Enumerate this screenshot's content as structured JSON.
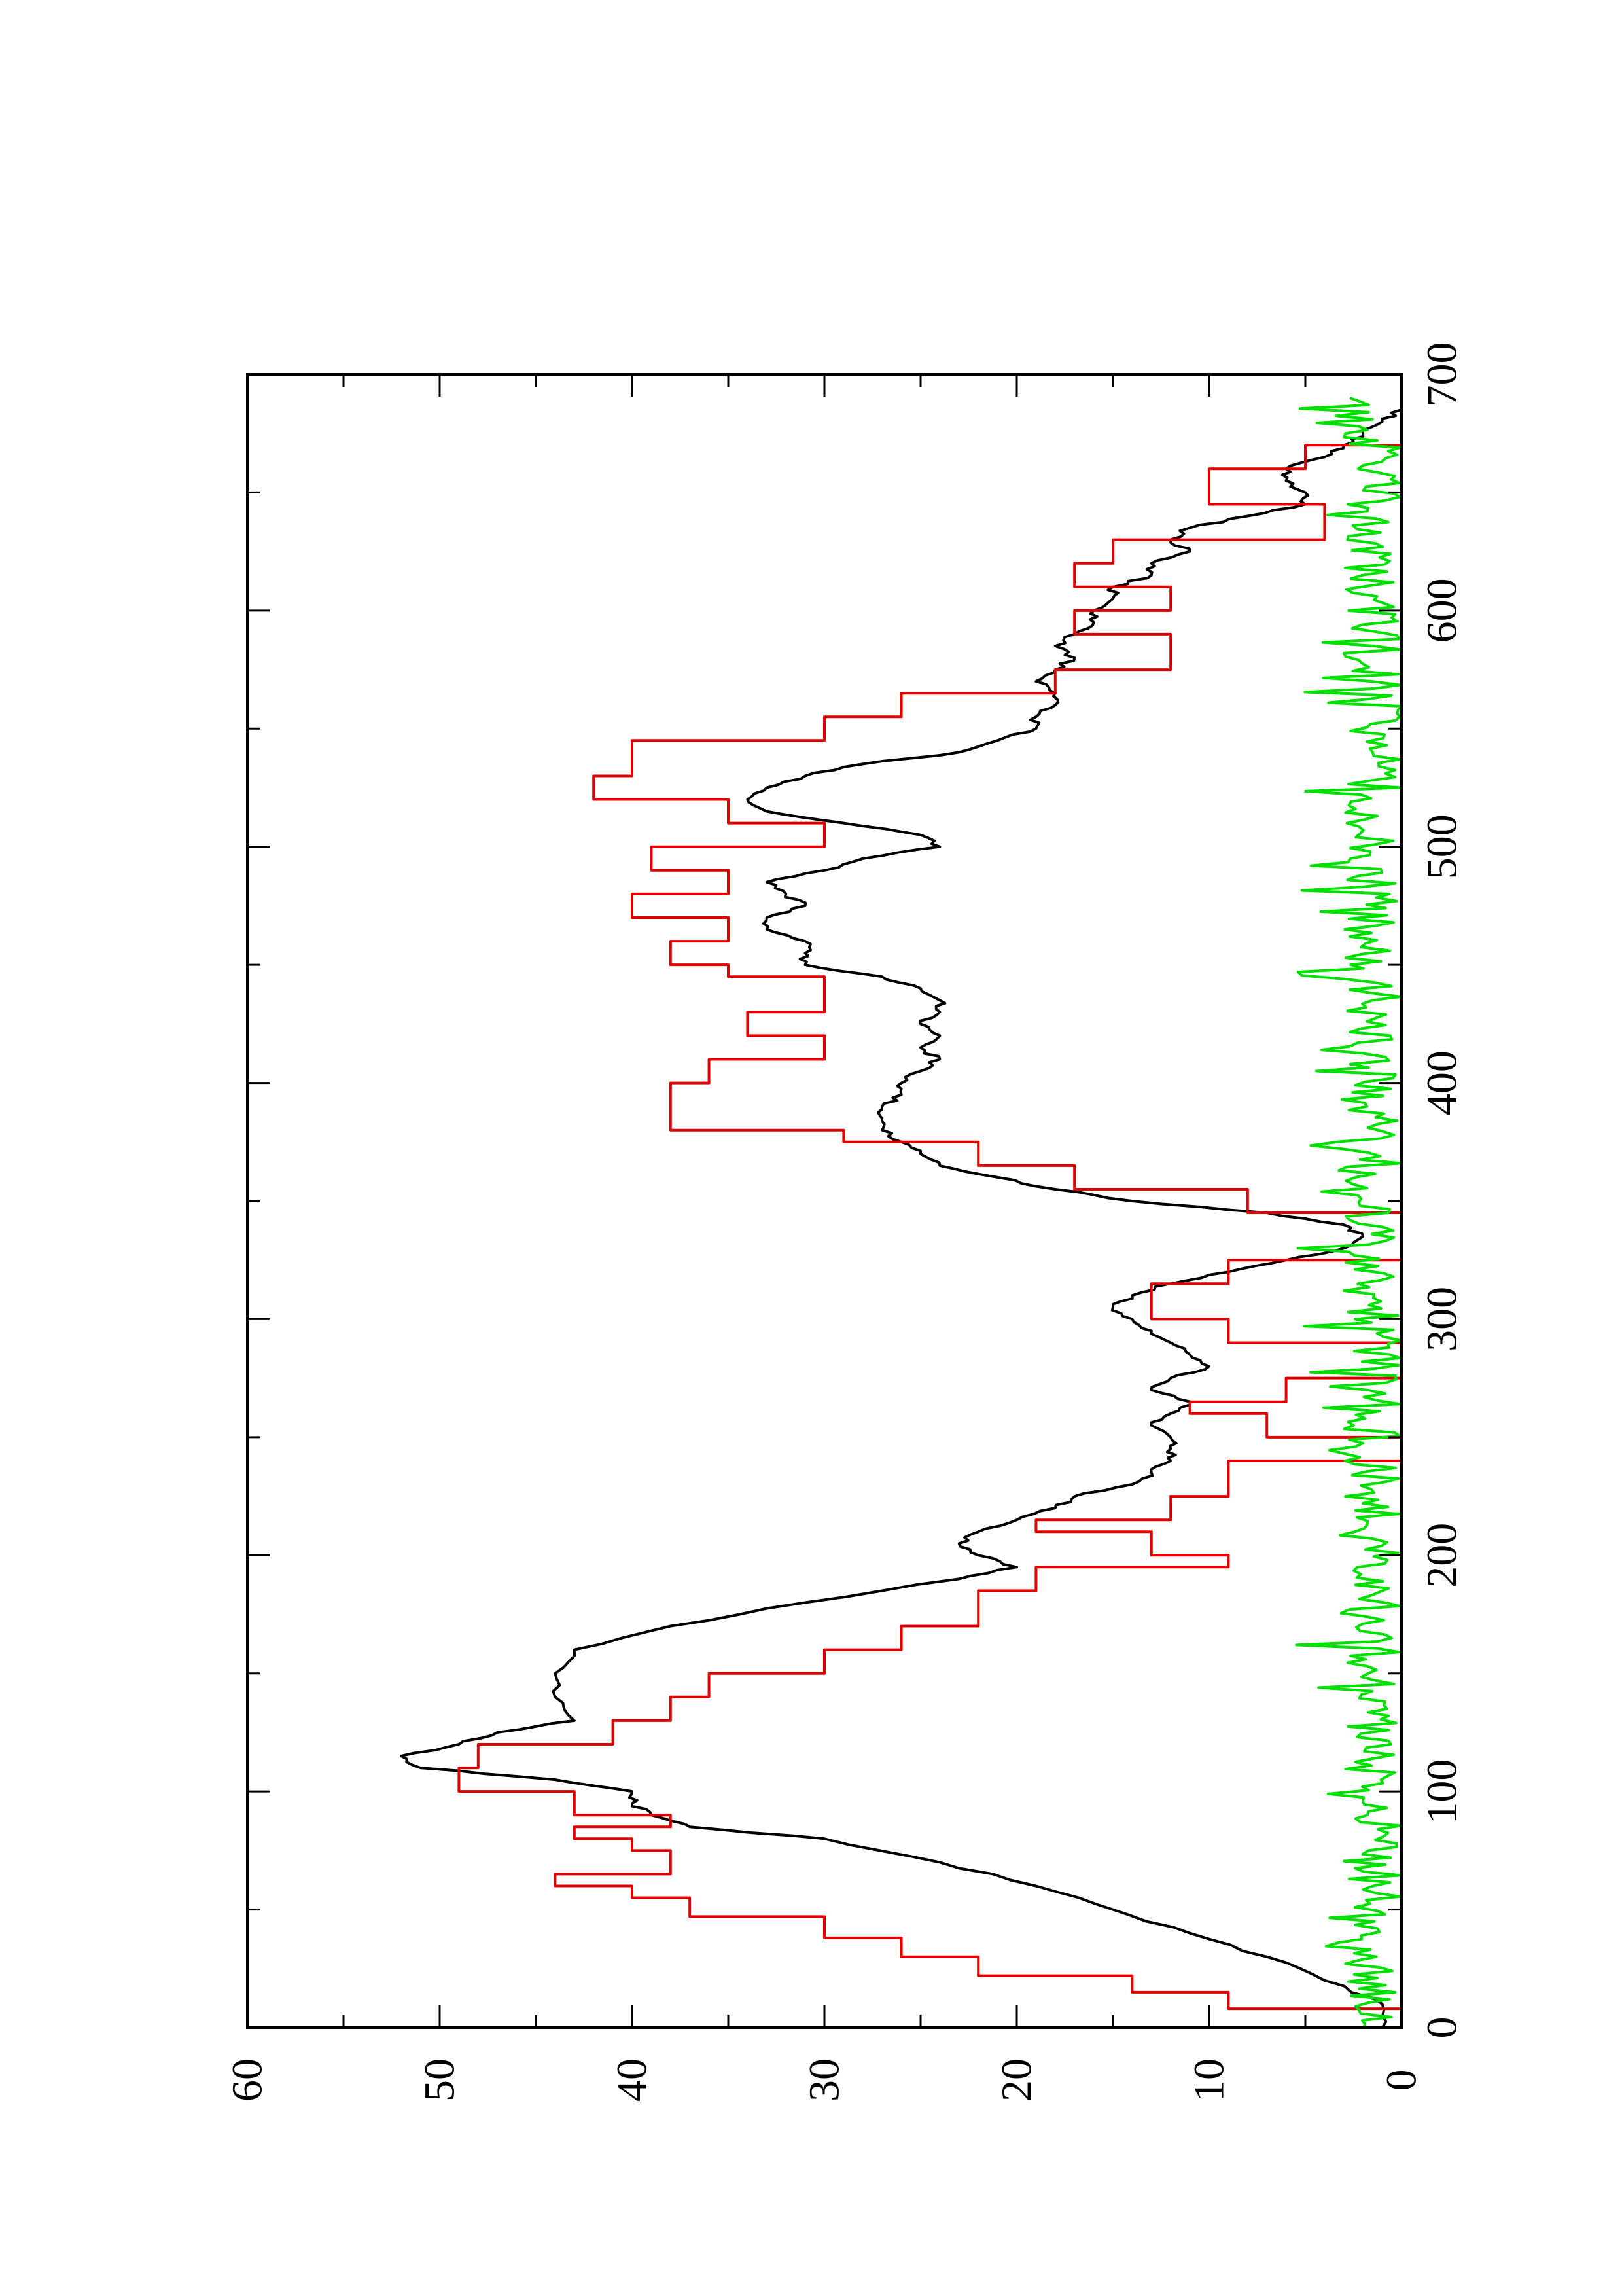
{
  "chart_data": {
    "type": "line",
    "orientation": "rotated-90-ccw",
    "title": "",
    "xlabel": "",
    "ylabel": "",
    "xlim": [
      0,
      700
    ],
    "ylim": [
      0,
      60
    ],
    "x_ticks": [
      0,
      100,
      200,
      300,
      400,
      500,
      600,
      700
    ],
    "x_tick_labels": [
      "0",
      "100",
      "200",
      "300",
      "400",
      "500",
      "600",
      "700"
    ],
    "y_ticks": [
      0,
      10,
      20,
      30,
      40,
      50,
      60
    ],
    "y_tick_labels": [
      "0",
      "10",
      "20",
      "30",
      "40",
      "50",
      "60"
    ],
    "grid": false,
    "series": [
      {
        "color": "#000000",
        "style": "smooth",
        "x": [
          0,
          10,
          20,
          30,
          40,
          50,
          60,
          70,
          80,
          85,
          90,
          95,
          100,
          105,
          110,
          115,
          120,
          125,
          130,
          140,
          150,
          160,
          170,
          180,
          190,
          195,
          200,
          205,
          210,
          215,
          220,
          225,
          230,
          235,
          240,
          245,
          250,
          255,
          260,
          265,
          270,
          275,
          280,
          285,
          290,
          295,
          300,
          305,
          310,
          315,
          320,
          325,
          330,
          335,
          340,
          345,
          350,
          355,
          360,
          365,
          370,
          375,
          380,
          385,
          390,
          395,
          400,
          405,
          410,
          415,
          420,
          425,
          430,
          435,
          440,
          445,
          450,
          455,
          460,
          465,
          470,
          475,
          480,
          485,
          490,
          495,
          500,
          505,
          510,
          515,
          520,
          525,
          530,
          535,
          540,
          545,
          550,
          555,
          560,
          565,
          570,
          575,
          580,
          585,
          590,
          595,
          600,
          605,
          610,
          615,
          620,
          625,
          630,
          635,
          640,
          645,
          650,
          655,
          660,
          665,
          670,
          675,
          680,
          685
        ],
        "values": [
          1,
          1,
          4,
          7,
          11,
          15,
          19,
          24,
          30,
          37,
          39,
          40,
          40,
          44,
          51,
          52,
          49,
          47,
          43,
          44,
          44,
          43,
          38,
          31,
          23,
          20,
          22,
          23,
          22,
          20,
          18,
          17,
          14,
          13,
          12,
          12,
          12,
          13,
          12,
          11,
          13,
          12,
          10,
          11,
          12,
          13,
          14,
          15,
          14,
          12,
          9,
          6,
          3,
          2,
          3,
          7,
          14,
          18,
          21,
          24,
          25,
          26,
          27,
          27,
          27,
          26,
          26,
          25,
          24,
          25,
          24,
          25,
          24,
          24,
          25,
          27,
          31,
          31,
          31,
          33,
          33,
          31,
          32,
          33,
          30,
          28,
          24,
          25,
          29,
          33,
          34,
          33,
          31,
          28,
          23,
          21,
          19,
          19,
          18,
          18,
          19,
          18,
          17,
          18,
          17,
          16,
          16,
          15,
          15,
          13,
          13,
          11,
          12,
          11,
          8,
          5,
          5,
          6,
          6,
          4,
          3,
          2,
          1,
          0
        ]
      },
      {
        "color": "#e00000",
        "style": "step",
        "x": [
          0,
          8,
          15,
          22,
          30,
          38,
          47,
          55,
          60,
          65,
          75,
          80,
          85,
          90,
          100,
          110,
          120,
          130,
          140,
          150,
          160,
          170,
          185,
          195,
          200,
          210,
          215,
          225,
          240,
          250,
          260,
          265,
          275,
          285,
          290,
          300,
          315,
          325,
          335,
          345,
          355,
          365,
          375,
          380,
          395,
          400,
          410,
          420,
          430,
          445,
          450,
          460,
          470,
          480,
          490,
          500,
          510,
          520,
          530,
          545,
          555,
          565,
          575,
          590,
          600,
          610,
          620,
          630,
          645,
          650,
          660,
          670,
          680,
          690
        ],
        "values": [
          0,
          9,
          14,
          22,
          26,
          30,
          37,
          40,
          44,
          38,
          40,
          43,
          38,
          43,
          49,
          48,
          41,
          38,
          36,
          30,
          26,
          22,
          19,
          9,
          13,
          19,
          12,
          9,
          0,
          7,
          11,
          6,
          0,
          0,
          9,
          13,
          9,
          0,
          0,
          8,
          17,
          22,
          29,
          38,
          38,
          36,
          30,
          34,
          30,
          35,
          38,
          35,
          40,
          35,
          39,
          30,
          35,
          42,
          40,
          30,
          26,
          18,
          12,
          17,
          12,
          17,
          15,
          4,
          10,
          10,
          5,
          0,
          0,
          0
        ]
      },
      {
        "color": "#00e000",
        "style": "noise",
        "amplitude": 4,
        "x_range": [
          0,
          690
        ]
      }
    ]
  }
}
